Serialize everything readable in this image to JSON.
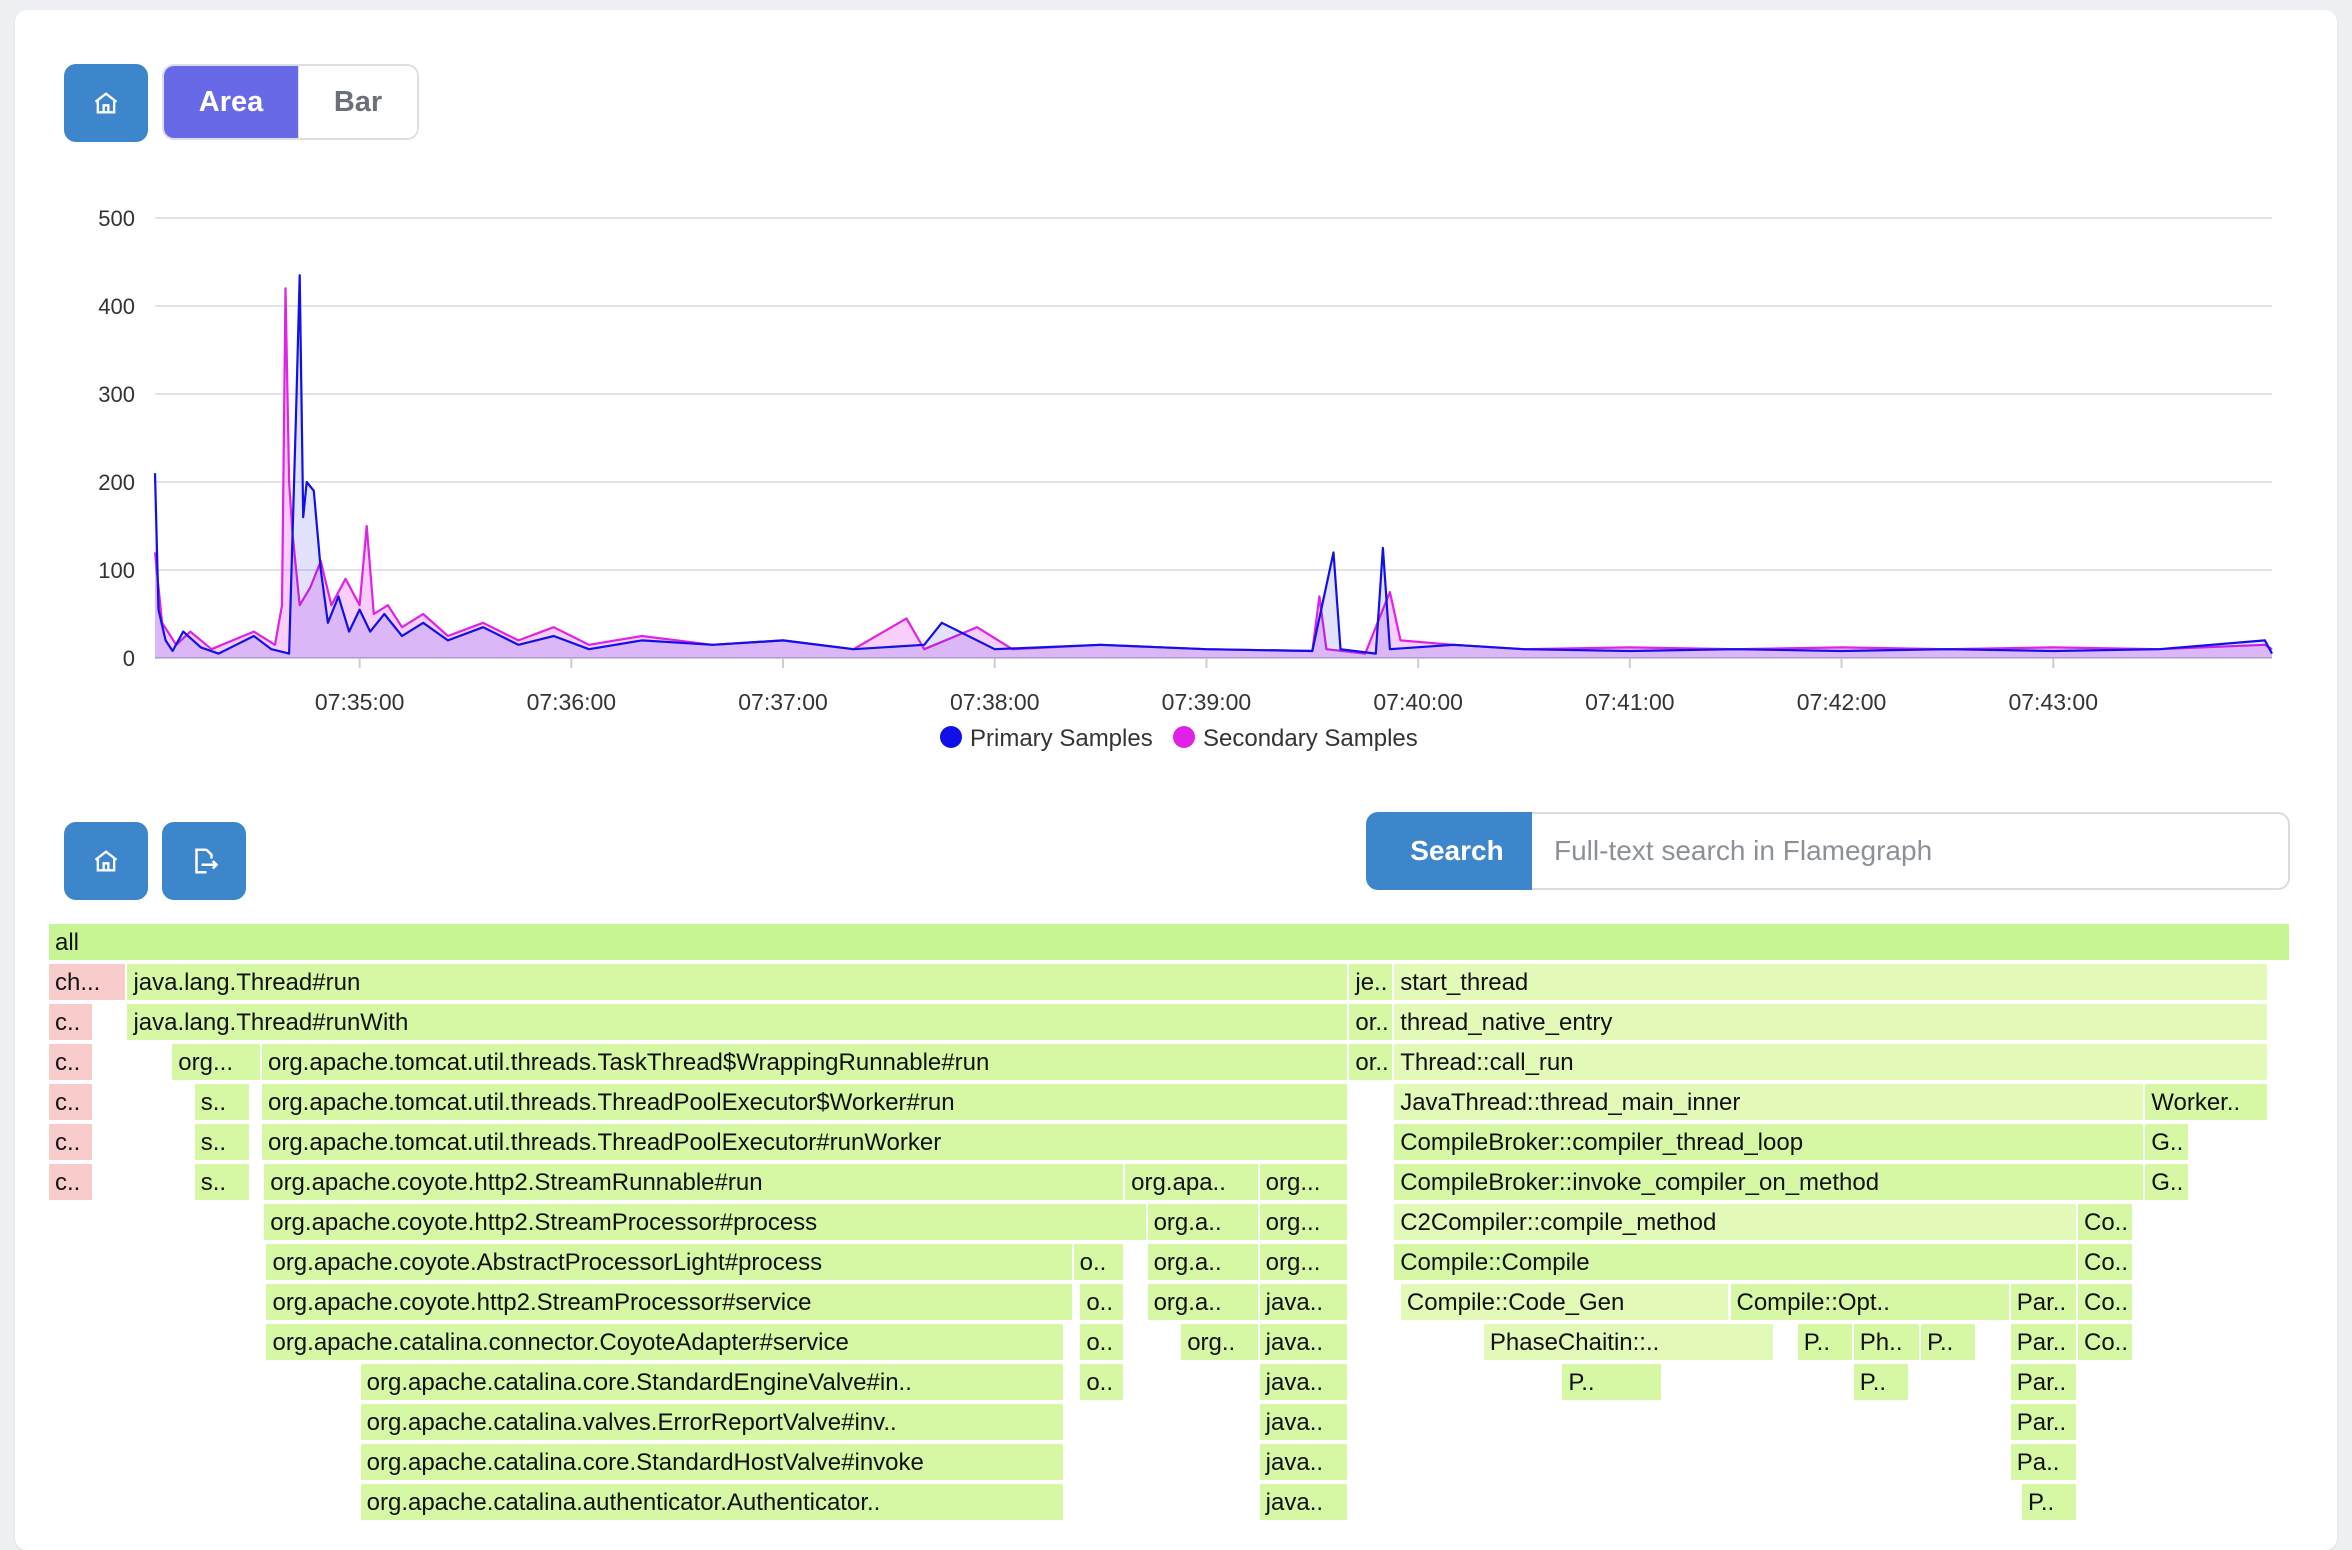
{
  "toolbar": {
    "home_icon": "home-icon",
    "view_modes": [
      "Area",
      "Bar"
    ],
    "selected_mode": "Area"
  },
  "chart_data": {
    "type": "area",
    "x_tick_labels": [
      "07:35:00",
      "07:36:00",
      "07:37:00",
      "07:38:00",
      "07:39:00",
      "07:40:00",
      "07:41:00",
      "07:42:00",
      "07:43:00"
    ],
    "x_range": [
      "07:34:02",
      "07:44:02"
    ],
    "y_tick_labels": [
      "0",
      "100",
      "200",
      "300",
      "400",
      "500"
    ],
    "ylim": [
      0,
      500
    ],
    "grid": true,
    "legend_position": "bottom",
    "series": [
      {
        "name": "Primary Samples",
        "color": "#1010e8",
        "points": [
          [
            "07:34:02",
            210
          ],
          [
            "07:34:03",
            55
          ],
          [
            "07:34:05",
            20
          ],
          [
            "07:34:07",
            8
          ],
          [
            "07:34:10",
            30
          ],
          [
            "07:34:15",
            12
          ],
          [
            "07:34:20",
            5
          ],
          [
            "07:34:25",
            15
          ],
          [
            "07:34:30",
            25
          ],
          [
            "07:34:35",
            10
          ],
          [
            "07:34:40",
            5
          ],
          [
            "07:34:42",
            280
          ],
          [
            "07:34:43",
            435
          ],
          [
            "07:34:44",
            160
          ],
          [
            "07:34:45",
            200
          ],
          [
            "07:34:47",
            190
          ],
          [
            "07:34:49",
            100
          ],
          [
            "07:34:51",
            40
          ],
          [
            "07:34:54",
            70
          ],
          [
            "07:34:57",
            30
          ],
          [
            "07:35:00",
            55
          ],
          [
            "07:35:03",
            30
          ],
          [
            "07:35:07",
            50
          ],
          [
            "07:35:12",
            25
          ],
          [
            "07:35:18",
            40
          ],
          [
            "07:35:25",
            20
          ],
          [
            "07:35:35",
            35
          ],
          [
            "07:35:45",
            15
          ],
          [
            "07:35:55",
            25
          ],
          [
            "07:36:05",
            10
          ],
          [
            "07:36:20",
            20
          ],
          [
            "07:36:40",
            15
          ],
          [
            "07:37:00",
            20
          ],
          [
            "07:37:20",
            10
          ],
          [
            "07:37:40",
            15
          ],
          [
            "07:37:45",
            40
          ],
          [
            "07:38:00",
            10
          ],
          [
            "07:38:30",
            15
          ],
          [
            "07:39:00",
            10
          ],
          [
            "07:39:30",
            8
          ],
          [
            "07:39:36",
            120
          ],
          [
            "07:39:38",
            10
          ],
          [
            "07:39:48",
            5
          ],
          [
            "07:39:50",
            125
          ],
          [
            "07:39:52",
            10
          ],
          [
            "07:40:10",
            15
          ],
          [
            "07:40:30",
            10
          ],
          [
            "07:41:00",
            8
          ],
          [
            "07:41:30",
            10
          ],
          [
            "07:42:00",
            8
          ],
          [
            "07:42:30",
            10
          ],
          [
            "07:43:00",
            8
          ],
          [
            "07:43:30",
            10
          ],
          [
            "07:44:00",
            20
          ],
          [
            "07:44:02",
            5
          ]
        ]
      },
      {
        "name": "Secondary Samples",
        "color": "#e022e6",
        "points": [
          [
            "07:34:02",
            120
          ],
          [
            "07:34:04",
            40
          ],
          [
            "07:34:08",
            15
          ],
          [
            "07:34:12",
            30
          ],
          [
            "07:34:18",
            10
          ],
          [
            "07:34:24",
            20
          ],
          [
            "07:34:30",
            30
          ],
          [
            "07:34:36",
            15
          ],
          [
            "07:34:38",
            60
          ],
          [
            "07:34:39",
            420
          ],
          [
            "07:34:40",
            200
          ],
          [
            "07:34:41",
            140
          ],
          [
            "07:34:43",
            60
          ],
          [
            "07:34:46",
            80
          ],
          [
            "07:34:49",
            110
          ],
          [
            "07:34:52",
            60
          ],
          [
            "07:34:56",
            90
          ],
          [
            "07:35:00",
            60
          ],
          [
            "07:35:02",
            150
          ],
          [
            "07:35:04",
            50
          ],
          [
            "07:35:08",
            60
          ],
          [
            "07:35:12",
            35
          ],
          [
            "07:35:18",
            50
          ],
          [
            "07:35:25",
            25
          ],
          [
            "07:35:35",
            40
          ],
          [
            "07:35:45",
            20
          ],
          [
            "07:35:55",
            35
          ],
          [
            "07:36:05",
            15
          ],
          [
            "07:36:20",
            25
          ],
          [
            "07:36:40",
            15
          ],
          [
            "07:37:00",
            20
          ],
          [
            "07:37:20",
            10
          ],
          [
            "07:37:35",
            45
          ],
          [
            "07:37:40",
            10
          ],
          [
            "07:37:55",
            35
          ],
          [
            "07:38:05",
            10
          ],
          [
            "07:38:30",
            15
          ],
          [
            "07:39:00",
            10
          ],
          [
            "07:39:30",
            8
          ],
          [
            "07:39:32",
            70
          ],
          [
            "07:39:34",
            10
          ],
          [
            "07:39:45",
            5
          ],
          [
            "07:39:52",
            75
          ],
          [
            "07:39:55",
            20
          ],
          [
            "07:40:10",
            15
          ],
          [
            "07:40:30",
            10
          ],
          [
            "07:41:00",
            12
          ],
          [
            "07:41:30",
            10
          ],
          [
            "07:42:00",
            12
          ],
          [
            "07:42:30",
            10
          ],
          [
            "07:43:00",
            12
          ],
          [
            "07:43:30",
            10
          ],
          [
            "07:44:00",
            15
          ],
          [
            "07:44:02",
            10
          ]
        ]
      }
    ]
  },
  "flame_toolbar": {
    "home_icon": "home-icon",
    "export_icon": "export-icon",
    "search_label": "Search",
    "search_placeholder": "Full-text search in Flamegraph",
    "search_value": ""
  },
  "flamegraph": {
    "frames": [
      {
        "row": 0,
        "x0": 0,
        "x1": 1.0,
        "label": "all",
        "color": "#c8f594"
      },
      {
        "row": 1,
        "x0": 0.0,
        "x1": 0.035,
        "label": "ch...",
        "color": "#f9cccc"
      },
      {
        "row": 1,
        "x0": 0.035,
        "x1": 0.58,
        "label": "java.lang.Thread#run",
        "color": "#d6f7a4"
      },
      {
        "row": 1,
        "x0": 0.58,
        "x1": 0.6,
        "label": "je..",
        "color": "#d6f7a4"
      },
      {
        "row": 1,
        "x0": 0.6,
        "x1": 0.99,
        "label": "start_thread",
        "color": "#e2f9b8"
      },
      {
        "row": 2,
        "x0": 0.0,
        "x1": 0.02,
        "label": "c..",
        "color": "#f9cccc"
      },
      {
        "row": 2,
        "x0": 0.035,
        "x1": 0.58,
        "label": "java.lang.Thread#runWith",
        "color": "#d6f7a4"
      },
      {
        "row": 2,
        "x0": 0.58,
        "x1": 0.6,
        "label": "or..",
        "color": "#d6f7a4"
      },
      {
        "row": 2,
        "x0": 0.6,
        "x1": 0.99,
        "label": "thread_native_entry",
        "color": "#e2f9b8"
      },
      {
        "row": 3,
        "x0": 0.0,
        "x1": 0.02,
        "label": "c..",
        "color": "#f9cccc"
      },
      {
        "row": 3,
        "x0": 0.055,
        "x1": 0.095,
        "label": "org...",
        "color": "#d6f7a4"
      },
      {
        "row": 3,
        "x0": 0.095,
        "x1": 0.58,
        "label": "org.apache.tomcat.util.threads.TaskThread$WrappingRunnable#run",
        "color": "#d6f7a4"
      },
      {
        "row": 3,
        "x0": 0.58,
        "x1": 0.6,
        "label": "or..",
        "color": "#d6f7a4"
      },
      {
        "row": 3,
        "x0": 0.6,
        "x1": 0.99,
        "label": "Thread::call_run",
        "color": "#e2f9b8"
      },
      {
        "row": 4,
        "x0": 0.0,
        "x1": 0.02,
        "label": "c..",
        "color": "#f9cccc"
      },
      {
        "row": 4,
        "x0": 0.065,
        "x1": 0.09,
        "label": "s..",
        "color": "#d6f7a4"
      },
      {
        "row": 4,
        "x0": 0.095,
        "x1": 0.58,
        "label": "org.apache.tomcat.util.threads.ThreadPoolExecutor$Worker#run",
        "color": "#d6f7a4"
      },
      {
        "row": 4,
        "x0": 0.6,
        "x1": 0.935,
        "label": "JavaThread::thread_main_inner",
        "color": "#e2f9b8"
      },
      {
        "row": 4,
        "x0": 0.935,
        "x1": 0.99,
        "label": "Worker..",
        "color": "#d6f7a4"
      },
      {
        "row": 5,
        "x0": 0.0,
        "x1": 0.02,
        "label": "c..",
        "color": "#f9cccc"
      },
      {
        "row": 5,
        "x0": 0.065,
        "x1": 0.09,
        "label": "s..",
        "color": "#d6f7a4"
      },
      {
        "row": 5,
        "x0": 0.095,
        "x1": 0.58,
        "label": "org.apache.tomcat.util.threads.ThreadPoolExecutor#runWorker",
        "color": "#d6f7a4"
      },
      {
        "row": 5,
        "x0": 0.6,
        "x1": 0.935,
        "label": "CompileBroker::compiler_thread_loop",
        "color": "#d6f7a4"
      },
      {
        "row": 5,
        "x0": 0.935,
        "x1": 0.955,
        "label": "G..",
        "color": "#d6f7a4"
      },
      {
        "row": 6,
        "x0": 0.0,
        "x1": 0.02,
        "label": "c..",
        "color": "#f9cccc"
      },
      {
        "row": 6,
        "x0": 0.065,
        "x1": 0.09,
        "label": "s..",
        "color": "#d6f7a4"
      },
      {
        "row": 6,
        "x0": 0.096,
        "x1": 0.48,
        "label": "org.apache.coyote.http2.StreamRunnable#run",
        "color": "#d6f7a4"
      },
      {
        "row": 6,
        "x0": 0.48,
        "x1": 0.54,
        "label": "org.apa..",
        "color": "#d6f7a4"
      },
      {
        "row": 6,
        "x0": 0.54,
        "x1": 0.58,
        "label": "org...",
        "color": "#d6f7a4"
      },
      {
        "row": 6,
        "x0": 0.6,
        "x1": 0.935,
        "label": "CompileBroker::invoke_compiler_on_method",
        "color": "#d6f7a4"
      },
      {
        "row": 6,
        "x0": 0.935,
        "x1": 0.955,
        "label": "G..",
        "color": "#d6f7a4"
      },
      {
        "row": 7,
        "x0": 0.096,
        "x1": 0.49,
        "label": "org.apache.coyote.http2.StreamProcessor#process",
        "color": "#d6f7a4"
      },
      {
        "row": 7,
        "x0": 0.49,
        "x1": 0.54,
        "label": "org.a..",
        "color": "#d6f7a4"
      },
      {
        "row": 7,
        "x0": 0.54,
        "x1": 0.58,
        "label": "org...",
        "color": "#d6f7a4"
      },
      {
        "row": 7,
        "x0": 0.6,
        "x1": 0.905,
        "label": "C2Compiler::compile_method",
        "color": "#e2f9b8"
      },
      {
        "row": 7,
        "x0": 0.905,
        "x1": 0.93,
        "label": "Co..",
        "color": "#d6f7a4"
      },
      {
        "row": 8,
        "x0": 0.097,
        "x1": 0.457,
        "label": "org.apache.coyote.AbstractProcessorLight#process",
        "color": "#d6f7a4"
      },
      {
        "row": 8,
        "x0": 0.457,
        "x1": 0.48,
        "label": "o..",
        "color": "#d6f7a4"
      },
      {
        "row": 8,
        "x0": 0.49,
        "x1": 0.54,
        "label": "org.a..",
        "color": "#d6f7a4"
      },
      {
        "row": 8,
        "x0": 0.54,
        "x1": 0.58,
        "label": "org...",
        "color": "#d6f7a4"
      },
      {
        "row": 8,
        "x0": 0.6,
        "x1": 0.905,
        "label": "Compile::Compile",
        "color": "#d6f7a4"
      },
      {
        "row": 8,
        "x0": 0.905,
        "x1": 0.93,
        "label": "Co..",
        "color": "#d6f7a4"
      },
      {
        "row": 9,
        "x0": 0.097,
        "x1": 0.457,
        "label": "org.apache.coyote.http2.StreamProcessor#service",
        "color": "#d6f7a4"
      },
      {
        "row": 9,
        "x0": 0.46,
        "x1": 0.48,
        "label": "o..",
        "color": "#d6f7a4"
      },
      {
        "row": 9,
        "x0": 0.49,
        "x1": 0.54,
        "label": "org.a..",
        "color": "#d6f7a4"
      },
      {
        "row": 9,
        "x0": 0.54,
        "x1": 0.58,
        "label": "java..",
        "color": "#d6f7a4"
      },
      {
        "row": 9,
        "x0": 0.603,
        "x1": 0.75,
        "label": "Compile::Code_Gen",
        "color": "#e2f9b8"
      },
      {
        "row": 9,
        "x0": 0.75,
        "x1": 0.875,
        "label": "Compile::Opt..",
        "color": "#d6f7a4"
      },
      {
        "row": 9,
        "x0": 0.875,
        "x1": 0.905,
        "label": "Par..",
        "color": "#d6f7a4"
      },
      {
        "row": 9,
        "x0": 0.905,
        "x1": 0.93,
        "label": "Co..",
        "color": "#d6f7a4"
      },
      {
        "row": 10,
        "x0": 0.097,
        "x1": 0.453,
        "label": "org.apache.catalina.connector.CoyoteAdapter#service",
        "color": "#d6f7a4"
      },
      {
        "row": 10,
        "x0": 0.46,
        "x1": 0.48,
        "label": "o..",
        "color": "#d6f7a4"
      },
      {
        "row": 10,
        "x0": 0.505,
        "x1": 0.54,
        "label": "org..",
        "color": "#d6f7a4"
      },
      {
        "row": 10,
        "x0": 0.54,
        "x1": 0.58,
        "label": "java..",
        "color": "#d6f7a4"
      },
      {
        "row": 10,
        "x0": 0.64,
        "x1": 0.77,
        "label": "PhaseChaitin::..",
        "color": "#e2f9b8"
      },
      {
        "row": 10,
        "x0": 0.78,
        "x1": 0.805,
        "label": "P..",
        "color": "#d6f7a4"
      },
      {
        "row": 10,
        "x0": 0.805,
        "x1": 0.835,
        "label": "Ph..",
        "color": "#d6f7a4"
      },
      {
        "row": 10,
        "x0": 0.835,
        "x1": 0.86,
        "label": "P..",
        "color": "#d6f7a4"
      },
      {
        "row": 10,
        "x0": 0.875,
        "x1": 0.905,
        "label": "Par..",
        "color": "#d6f7a4"
      },
      {
        "row": 10,
        "x0": 0.905,
        "x1": 0.93,
        "label": "Co..",
        "color": "#d6f7a4"
      },
      {
        "row": 11,
        "x0": 0.139,
        "x1": 0.453,
        "label": "org.apache.catalina.core.StandardEngineValve#in..",
        "color": "#d6f7a4"
      },
      {
        "row": 11,
        "x0": 0.46,
        "x1": 0.48,
        "label": "o..",
        "color": "#d6f7a4"
      },
      {
        "row": 11,
        "x0": 0.54,
        "x1": 0.58,
        "label": "java..",
        "color": "#d6f7a4"
      },
      {
        "row": 11,
        "x0": 0.675,
        "x1": 0.72,
        "label": "P..",
        "color": "#d6f7a4"
      },
      {
        "row": 11,
        "x0": 0.805,
        "x1": 0.83,
        "label": "P..",
        "color": "#d6f7a4"
      },
      {
        "row": 11,
        "x0": 0.875,
        "x1": 0.905,
        "label": "Par..",
        "color": "#d6f7a4"
      },
      {
        "row": 12,
        "x0": 0.139,
        "x1": 0.453,
        "label": "org.apache.catalina.valves.ErrorReportValve#inv..",
        "color": "#d6f7a4"
      },
      {
        "row": 12,
        "x0": 0.54,
        "x1": 0.58,
        "label": "java..",
        "color": "#d6f7a4"
      },
      {
        "row": 12,
        "x0": 0.875,
        "x1": 0.905,
        "label": "Par..",
        "color": "#d6f7a4"
      },
      {
        "row": 13,
        "x0": 0.139,
        "x1": 0.453,
        "label": "org.apache.catalina.core.StandardHostValve#invoke",
        "color": "#d6f7a4"
      },
      {
        "row": 13,
        "x0": 0.54,
        "x1": 0.58,
        "label": "java..",
        "color": "#d6f7a4"
      },
      {
        "row": 13,
        "x0": 0.875,
        "x1": 0.905,
        "label": "Pa..",
        "color": "#d6f7a4"
      },
      {
        "row": 14,
        "x0": 0.139,
        "x1": 0.453,
        "label": "org.apache.catalina.authenticator.Authenticator..",
        "color": "#d6f7a4"
      },
      {
        "row": 14,
        "x0": 0.54,
        "x1": 0.58,
        "label": "java..",
        "color": "#d6f7a4"
      },
      {
        "row": 14,
        "x0": 0.88,
        "x1": 0.905,
        "label": "P..",
        "color": "#d6f7a4"
      }
    ]
  }
}
